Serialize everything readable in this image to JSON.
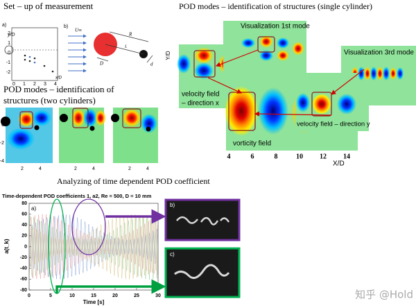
{
  "setup": {
    "title": "Set – up of measurement",
    "sketch_a": {
      "label": "a)",
      "y_label": "y/D",
      "x_label": "x/D",
      "yticks": [
        "2",
        "1",
        "0",
        "-1",
        "-2"
      ],
      "xticks": [
        "0",
        "1",
        "2",
        "3",
        "4"
      ]
    },
    "sketch_b": {
      "label": "b)",
      "flow": "U∞",
      "radius": "R",
      "diameter": "D",
      "length": "L",
      "small_diameter": "d"
    }
  },
  "two_cylinders": {
    "title": [
      "POD modes – identification of",
      "structures (two cylinders)"
    ],
    "yticks": [
      "0",
      "-2",
      "-4"
    ],
    "panels": [
      {
        "xticks": [
          "2",
          "4"
        ]
      },
      {
        "xticks": [
          "2",
          "4"
        ]
      },
      {
        "xticks": [
          "2",
          "4"
        ]
      }
    ]
  },
  "single_cylinder": {
    "title": "POD modes – identification of structures (single cylinder)",
    "first_mode": "Visualization 1st mode",
    "third_mode": "Visualization 3rd mode",
    "velocity_x": [
      "velocity field",
      "– direction x"
    ],
    "vorticity": "vorticity field",
    "velocity_y": "velocity field – direction y",
    "y_label": "Y/D",
    "x_label": "X/D",
    "xticks": [
      "4",
      "6",
      "8",
      "10",
      "12",
      "14"
    ]
  },
  "time_coefficient": {
    "heading": "Analyzing of time dependent POD coefficient",
    "chart": {
      "title": "Time-dependent POD coefficients 1, a2, Re = 500, D = 10 mm",
      "panel_label": "a)",
      "y_label": "a(t_k)",
      "x_label": "Time [s]",
      "xlim": [
        0,
        30
      ],
      "ylim": [
        -80,
        80
      ],
      "xticks": [
        0,
        5,
        10,
        15,
        20,
        25,
        30
      ],
      "yticks": [
        80,
        60,
        40,
        20,
        0,
        -20,
        -40,
        -60,
        -80
      ],
      "insets": [
        "b)",
        "c)"
      ]
    }
  },
  "watermark": "知乎 @Hold"
}
